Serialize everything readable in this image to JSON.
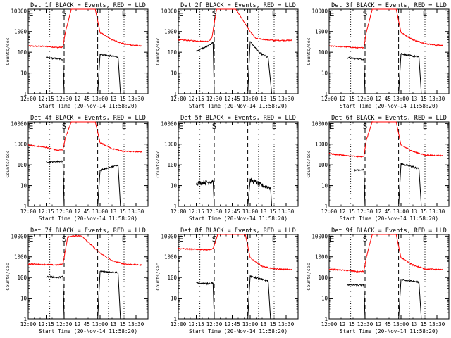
{
  "chart_data": {
    "type": "line",
    "layout": "3x3 grid",
    "xlabel": "Start Time (20-Nov-14 11:58:20)",
    "ylabel": "Counts/sec",
    "x_tick_labels": [
      "12:00",
      "12:15",
      "12:30",
      "12:45",
      "13:00",
      "13:15",
      "13:30"
    ],
    "xlim": [
      "12:00",
      "13:40"
    ],
    "y_scale": "log",
    "y_tick_labels": [
      "1",
      "10",
      "100",
      "1000",
      "10000"
    ],
    "ylim": [
      1,
      12000
    ],
    "markers": [
      {
        "label": "S",
        "time": "12:30",
        "line": "dashed"
      },
      {
        "label": "E",
        "time": "13:20",
        "line": "dotted"
      }
    ],
    "vertical_lines": [
      {
        "time": "12:18",
        "line": "dotted"
      },
      {
        "time": "12:30",
        "line": "dashed"
      },
      {
        "time": "12:58",
        "line": "dashed"
      },
      {
        "time": "13:07",
        "line": "dotted"
      },
      {
        "time": "13:20",
        "line": "dotted"
      }
    ],
    "series_colors": {
      "events": "#000000",
      "lld": "#ff0000"
    },
    "panels": [
      {
        "title": "Det 1f BLACK = Events, RED = LLD",
        "lld": [
          [
            "12:00",
            200
          ],
          [
            "12:15",
            190
          ],
          [
            "12:25",
            170
          ],
          [
            "12:29",
            180
          ],
          [
            "12:31",
            900
          ],
          [
            "12:36",
            12000
          ],
          [
            "12:56",
            12000
          ],
          [
            "13:00",
            900
          ],
          [
            "13:10",
            400
          ],
          [
            "13:20",
            250
          ],
          [
            "13:30",
            210
          ],
          [
            "13:35",
            205
          ]
        ],
        "events": [
          [
            "12:15",
            55
          ],
          [
            "12:25",
            48
          ],
          [
            "12:29",
            45
          ],
          [
            "12:30",
            1
          ],
          [
            "12:58",
            1
          ],
          [
            "13:00",
            80
          ],
          [
            "13:10",
            65
          ],
          [
            "13:15",
            60
          ],
          [
            "13:17",
            1
          ]
        ]
      },
      {
        "title": "Det 2f BLACK = Events, RED = LLD",
        "lld": [
          [
            "12:00",
            400
          ],
          [
            "12:15",
            350
          ],
          [
            "12:25",
            330
          ],
          [
            "12:28",
            500
          ],
          [
            "12:32",
            12000
          ],
          [
            "12:48",
            12000
          ],
          [
            "13:00",
            1000
          ],
          [
            "13:05",
            450
          ],
          [
            "13:20",
            370
          ],
          [
            "13:35",
            375
          ]
        ],
        "events": [
          [
            "12:15",
            115
          ],
          [
            "12:25",
            200
          ],
          [
            "12:29",
            300
          ],
          [
            "12:30",
            1
          ],
          [
            "12:58",
            1
          ],
          [
            "13:00",
            340
          ],
          [
            "13:03",
            200
          ],
          [
            "13:08",
            90
          ],
          [
            "13:15",
            55
          ],
          [
            "13:18",
            1
          ]
        ]
      },
      {
        "title": "Det 3f BLACK = Events, RED = LLD",
        "lld": [
          [
            "12:00",
            200
          ],
          [
            "12:15",
            180
          ],
          [
            "12:25",
            160
          ],
          [
            "12:29",
            170
          ],
          [
            "12:31",
            900
          ],
          [
            "12:36",
            12000
          ],
          [
            "12:56",
            12000
          ],
          [
            "13:00",
            900
          ],
          [
            "13:10",
            400
          ],
          [
            "13:20",
            260
          ],
          [
            "13:30",
            220
          ],
          [
            "13:35",
            215
          ]
        ],
        "events": [
          [
            "12:15",
            55
          ],
          [
            "12:25",
            48
          ],
          [
            "12:29",
            45
          ],
          [
            "12:30",
            1
          ],
          [
            "12:58",
            1
          ],
          [
            "13:00",
            85
          ],
          [
            "13:10",
            65
          ],
          [
            "13:15",
            60
          ],
          [
            "13:17",
            1
          ]
        ]
      },
      {
        "title": "Det 4f BLACK = Events, RED = LLD",
        "lld": [
          [
            "12:00",
            900
          ],
          [
            "12:15",
            700
          ],
          [
            "12:25",
            500
          ],
          [
            "12:29",
            550
          ],
          [
            "12:31",
            2000
          ],
          [
            "12:36",
            12000
          ],
          [
            "12:56",
            12000
          ],
          [
            "13:00",
            1200
          ],
          [
            "13:10",
            600
          ],
          [
            "13:20",
            450
          ],
          [
            "13:35",
            430
          ]
        ],
        "events": [
          [
            "12:15",
            140
          ],
          [
            "12:25",
            145
          ],
          [
            "12:29",
            150
          ],
          [
            "12:30",
            1
          ],
          [
            "12:58",
            1
          ],
          [
            "13:00",
            55
          ],
          [
            "13:10",
            80
          ],
          [
            "13:15",
            100
          ],
          [
            "13:17",
            1
          ]
        ]
      },
      {
        "title": "Det 5f BLACK = Events, RED = LLD",
        "lld": [],
        "events": [
          [
            "12:15",
            13
          ],
          [
            "12:25",
            15
          ],
          [
            "12:29",
            17
          ],
          [
            "12:30",
            1
          ],
          [
            "12:58",
            1
          ],
          [
            "13:00",
            18
          ],
          [
            "13:05",
            14
          ],
          [
            "13:10",
            10
          ],
          [
            "13:17",
            8
          ],
          [
            "13:18",
            1
          ]
        ]
      },
      {
        "title": "Det 6f BLACK = Events, RED = LLD",
        "lld": [
          [
            "12:00",
            350
          ],
          [
            "12:15",
            280
          ],
          [
            "12:25",
            250
          ],
          [
            "12:29",
            260
          ],
          [
            "12:31",
            1500
          ],
          [
            "12:36",
            12000
          ],
          [
            "12:56",
            12000
          ],
          [
            "13:00",
            900
          ],
          [
            "13:10",
            450
          ],
          [
            "13:20",
            300
          ],
          [
            "13:35",
            280
          ]
        ],
        "events": [
          [
            "12:21",
            55
          ],
          [
            "12:25",
            58
          ],
          [
            "12:29",
            60
          ],
          [
            "12:30",
            1
          ],
          [
            "12:58",
            1
          ],
          [
            "13:00",
            110
          ],
          [
            "13:10",
            80
          ],
          [
            "13:15",
            65
          ],
          [
            "13:17",
            1
          ]
        ]
      },
      {
        "title": "Det 7f BLACK = Events, RED = LLD",
        "lld": [
          [
            "12:00",
            450
          ],
          [
            "12:15",
            420
          ],
          [
            "12:25",
            400
          ],
          [
            "12:29",
            450
          ],
          [
            "12:33",
            9000
          ],
          [
            "12:40",
            10500
          ],
          [
            "12:45",
            10000
          ],
          [
            "12:52",
            4000
          ],
          [
            "13:00",
            1500
          ],
          [
            "13:10",
            650
          ],
          [
            "13:20",
            450
          ],
          [
            "13:35",
            400
          ]
        ],
        "events": [
          [
            "12:15",
            110
          ],
          [
            "12:25",
            100
          ],
          [
            "12:29",
            110
          ],
          [
            "12:30",
            1
          ],
          [
            "12:58",
            1
          ],
          [
            "13:00",
            200
          ],
          [
            "13:10",
            180
          ],
          [
            "13:15",
            175
          ],
          [
            "13:17",
            1
          ]
        ]
      },
      {
        "title": "Det 8f BLACK = Events, RED = LLD",
        "lld": [
          [
            "12:00",
            2500
          ],
          [
            "12:15",
            2300
          ],
          [
            "12:25",
            2200
          ],
          [
            "12:29",
            2400
          ],
          [
            "12:33",
            12000
          ],
          [
            "12:56",
            12000
          ],
          [
            "13:00",
            900
          ],
          [
            "13:10",
            350
          ],
          [
            "13:20",
            260
          ],
          [
            "13:35",
            240
          ]
        ],
        "events": [
          [
            "12:15",
            55
          ],
          [
            "12:25",
            50
          ],
          [
            "12:29",
            55
          ],
          [
            "12:30",
            1
          ],
          [
            "12:58",
            1
          ],
          [
            "13:00",
            115
          ],
          [
            "13:10",
            80
          ],
          [
            "13:15",
            70
          ],
          [
            "13:17",
            1
          ]
        ]
      },
      {
        "title": "Det 9f BLACK = Events, RED = LLD",
        "lld": [
          [
            "12:00",
            250
          ],
          [
            "12:15",
            220
          ],
          [
            "12:25",
            190
          ],
          [
            "12:29",
            200
          ],
          [
            "12:31",
            900
          ],
          [
            "12:36",
            12000
          ],
          [
            "12:56",
            12000
          ],
          [
            "13:00",
            900
          ],
          [
            "13:10",
            400
          ],
          [
            "13:20",
            260
          ],
          [
            "13:35",
            240
          ]
        ],
        "events": [
          [
            "12:15",
            45
          ],
          [
            "12:25",
            42
          ],
          [
            "12:29",
            45
          ],
          [
            "12:30",
            1
          ],
          [
            "12:58",
            1
          ],
          [
            "13:00",
            80
          ],
          [
            "13:10",
            65
          ],
          [
            "13:15",
            60
          ],
          [
            "13:17",
            1
          ]
        ]
      }
    ]
  }
}
